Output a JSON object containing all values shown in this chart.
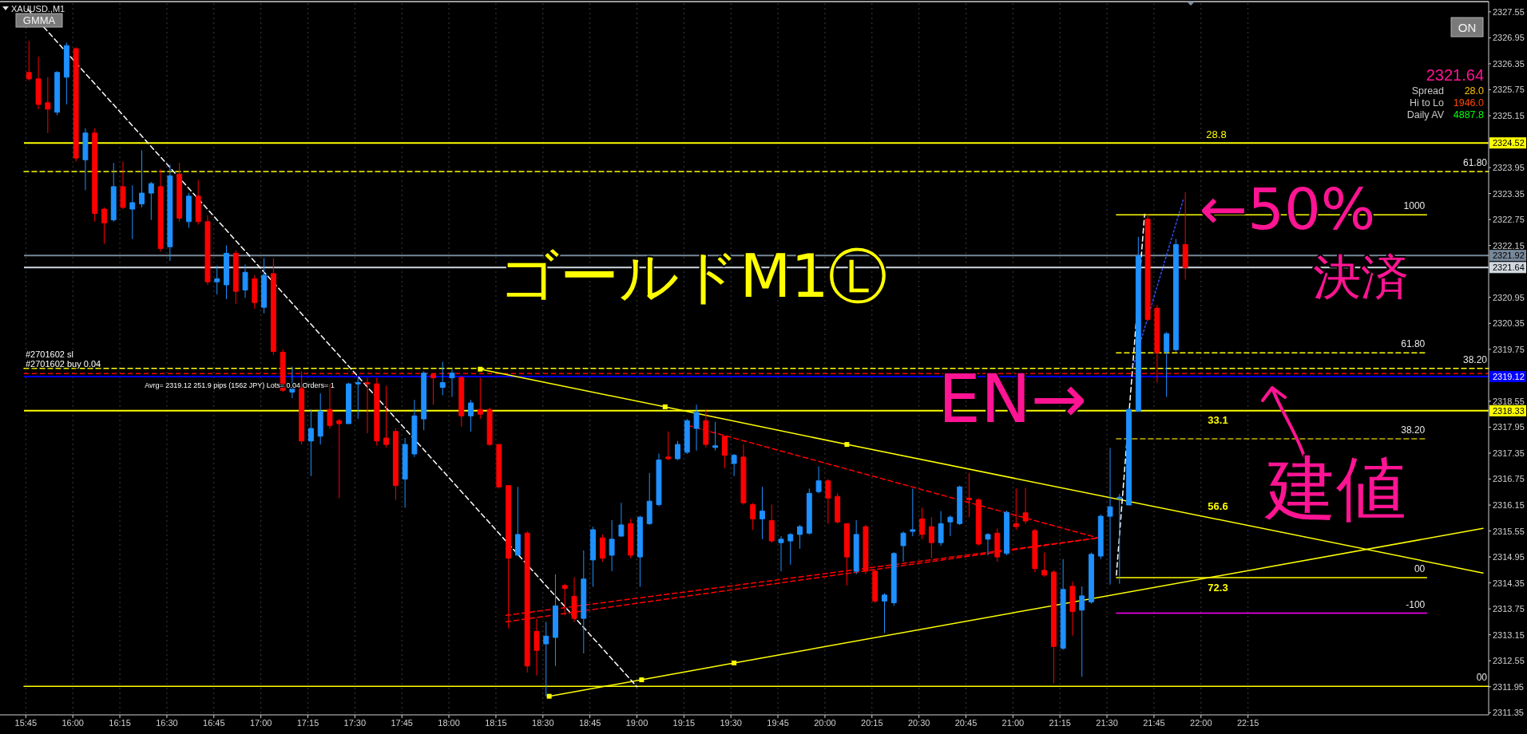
{
  "chart_data": {
    "type": "candlestick",
    "title": "XAUUSD.,M1",
    "x": [
      15.7667,
      15.8167,
      15.8667,
      15.9167,
      15.9667,
      16.0167,
      16.0667,
      16.1167,
      16.1667,
      16.2167,
      16.2667,
      16.3167,
      16.3667,
      16.4167,
      16.4667,
      16.5167,
      16.5667,
      16.6167,
      16.6667,
      16.7167,
      16.7667,
      16.8167,
      16.8667,
      16.9167,
      16.9667,
      17.0167,
      17.0667,
      17.1167,
      17.1667,
      17.2167,
      17.2667,
      17.3167,
      17.3667,
      17.4167,
      17.4667,
      17.5167,
      17.5667,
      17.6167,
      17.6667,
      17.7167,
      17.7667,
      17.8167,
      17.8667,
      17.9167,
      17.9667,
      18.0167,
      18.0667,
      18.1167,
      18.1667,
      18.2167,
      18.2667,
      18.3167,
      18.3667,
      18.4167,
      18.4667,
      18.5167,
      18.5667,
      18.6167,
      18.6667,
      18.7167,
      18.7667,
      18.8167,
      18.8667,
      18.9167,
      18.9667,
      19.0167,
      19.0667,
      19.1167,
      19.1667,
      19.2167,
      19.2667,
      19.3167,
      19.3667,
      19.4167,
      19.4667,
      19.5167,
      19.5667,
      19.6167,
      19.6667,
      19.7167,
      19.7667,
      19.8167,
      19.8667,
      19.9167,
      19.9667,
      20.0167,
      20.0667,
      20.1167,
      20.1667,
      20.2167,
      20.2667,
      20.3167,
      20.3667,
      20.4167,
      20.4667,
      20.5167,
      20.5667,
      20.6167,
      20.6667,
      20.7167,
      20.7667,
      20.8167,
      20.8667,
      20.9167,
      20.9667,
      21.0167,
      21.0667,
      21.1167,
      21.1667,
      21.2167,
      21.2667,
      21.3167,
      21.3667,
      21.4167,
      21.4667,
      21.5167,
      21.5667,
      21.6167,
      21.6667,
      21.7167,
      21.7667,
      21.8167,
      21.8667,
      21.9167
    ],
    "ohlc": [
      [
        2326.15,
        2326.88,
        2325.96,
        2326.0
      ],
      [
        2326.0,
        2326.51,
        2325.3,
        2325.41
      ],
      [
        2325.45,
        2326.04,
        2324.75,
        2325.3
      ],
      [
        2325.23,
        2326.18,
        2325.16,
        2326.15
      ],
      [
        2326.04,
        2326.84,
        2325.41,
        2326.77
      ],
      [
        2326.7,
        2326.73,
        2324.09,
        2324.17
      ],
      [
        2324.13,
        2324.86,
        2323.43,
        2324.75
      ],
      [
        2324.75,
        2324.86,
        2322.7,
        2322.89
      ],
      [
        2322.99,
        2323.03,
        2322.19,
        2322.67
      ],
      [
        2322.74,
        2324.06,
        2322.7,
        2323.51
      ],
      [
        2323.51,
        2324.09,
        2322.99,
        2323.03
      ],
      [
        2322.99,
        2323.54,
        2322.3,
        2323.14
      ],
      [
        2323.11,
        2324.35,
        2323.03,
        2323.36
      ],
      [
        2323.36,
        2323.62,
        2322.74,
        2323.58
      ],
      [
        2323.51,
        2323.91,
        2322.01,
        2322.08
      ],
      [
        2322.12,
        2324.02,
        2321.79,
        2323.76
      ],
      [
        2323.8,
        2324.06,
        2322.7,
        2322.78
      ],
      [
        2322.7,
        2323.36,
        2322.56,
        2323.29
      ],
      [
        2323.29,
        2323.66,
        2322.63,
        2322.7
      ],
      [
        2322.7,
        2322.85,
        2321.24,
        2321.31
      ],
      [
        2321.31,
        2321.68,
        2321.02,
        2321.38
      ],
      [
        2321.24,
        2322.15,
        2320.91,
        2321.97
      ],
      [
        2321.97,
        2322.04,
        2320.8,
        2321.09
      ],
      [
        2321.12,
        2321.71,
        2320.94,
        2321.53
      ],
      [
        2321.38,
        2321.46,
        2320.69,
        2320.83
      ],
      [
        2320.72,
        2321.86,
        2320.58,
        2321.46
      ],
      [
        2321.5,
        2321.86,
        2319.62,
        2319.7
      ],
      [
        2319.68,
        2319.75,
        2318.76,
        2318.8
      ],
      [
        2318.76,
        2319.35,
        2318.62,
        2318.84
      ],
      [
        2318.9,
        2319.24,
        2317.55,
        2317.63
      ],
      [
        2317.63,
        2318.36,
        2316.82,
        2317.92
      ],
      [
        2317.74,
        2318.73,
        2317.55,
        2318.32
      ],
      [
        2318.36,
        2318.95,
        2317.92,
        2317.99
      ],
      [
        2318.1,
        2318.14,
        2316.31,
        2318.03
      ],
      [
        2318.03,
        2318.98,
        2318.03,
        2318.95
      ],
      [
        2318.95,
        2319.09,
        2318.14,
        2318.98
      ],
      [
        2318.98,
        2319.09,
        2317.81,
        2318.95
      ],
      [
        2318.95,
        2319.09,
        2317.52,
        2317.63
      ],
      [
        2317.7,
        2318.91,
        2317.48,
        2317.55
      ],
      [
        2317.85,
        2317.92,
        2316.27,
        2316.6
      ],
      [
        2316.75,
        2317.7,
        2316.09,
        2317.55
      ],
      [
        2317.33,
        2318.58,
        2317.26,
        2318.21
      ],
      [
        2318.14,
        2319.24,
        2317.88,
        2319.2
      ],
      [
        2319.17,
        2319.2,
        2318.47,
        2319.09
      ],
      [
        2318.87,
        2319.46,
        2318.69,
        2318.98
      ],
      [
        2319.09,
        2319.28,
        2318.65,
        2319.2
      ],
      [
        2319.1,
        2319.12,
        2317.96,
        2318.21
      ],
      [
        2318.21,
        2318.58,
        2317.85,
        2318.51
      ],
      [
        2318.36,
        2319.09,
        2318.14,
        2318.25
      ],
      [
        2318.36,
        2318.4,
        2317.52,
        2317.55
      ],
      [
        2317.55,
        2317.55,
        2316.53,
        2316.57
      ],
      [
        2316.6,
        2316.6,
        2313.3,
        2314.92
      ],
      [
        2314.99,
        2316.57,
        2314.99,
        2315.47
      ],
      [
        2315.5,
        2315.54,
        2312.28,
        2312.43
      ],
      [
        2313.23,
        2313.52,
        2312.21,
        2312.79
      ],
      [
        2312.94,
        2313.45,
        2311.73,
        2313.12
      ],
      [
        2313.09,
        2314.55,
        2312.43,
        2313.82
      ],
      [
        2314.29,
        2314.33,
        2313.6,
        2314.22
      ],
      [
        2314.04,
        2314.48,
        2313.45,
        2313.53
      ],
      [
        2313.53,
        2315.1,
        2312.72,
        2314.44
      ],
      [
        2314.88,
        2315.65,
        2314.26,
        2315.58
      ],
      [
        2315.39,
        2315.47,
        2314.84,
        2314.92
      ],
      [
        2314.99,
        2315.8,
        2314.62,
        2315.36
      ],
      [
        2315.43,
        2316.2,
        2315.43,
        2315.69
      ],
      [
        2315.72,
        2315.83,
        2314.92,
        2314.99
      ],
      [
        2314.95,
        2315.9,
        2314.26,
        2315.87
      ],
      [
        2315.72,
        2316.89,
        2315.69,
        2316.24
      ],
      [
        2316.16,
        2317.34,
        2316.12,
        2317.19
      ],
      [
        2317.26,
        2317.85,
        2317.19,
        2317.22
      ],
      [
        2317.22,
        2317.63,
        2317.19,
        2317.55
      ],
      [
        2317.37,
        2318.14,
        2317.33,
        2318.1
      ],
      [
        2317.92,
        2318.47,
        2317.41,
        2318.29
      ],
      [
        2318.1,
        2318.36,
        2317.48,
        2317.55
      ],
      [
        2317.48,
        2318.07,
        2317.41,
        2317.52
      ],
      [
        2317.74,
        2317.74,
        2317.0,
        2317.3
      ],
      [
        2317.11,
        2317.33,
        2316.82,
        2317.3
      ],
      [
        2317.26,
        2317.55,
        2316.16,
        2316.2
      ],
      [
        2316.16,
        2316.2,
        2315.58,
        2315.83
      ],
      [
        2315.83,
        2316.57,
        2315.36,
        2316.01
      ],
      [
        2315.79,
        2316.16,
        2315.28,
        2315.32
      ],
      [
        2315.28,
        2315.43,
        2314.62,
        2315.36
      ],
      [
        2315.32,
        2315.5,
        2314.77,
        2315.47
      ],
      [
        2315.47,
        2315.69,
        2315.14,
        2315.65
      ],
      [
        2315.5,
        2316.53,
        2315.47,
        2316.42
      ],
      [
        2316.46,
        2317.04,
        2316.42,
        2316.71
      ],
      [
        2316.71,
        2316.75,
        2315.72,
        2316.31
      ],
      [
        2316.35,
        2316.42,
        2315.72,
        2315.76
      ],
      [
        2315.72,
        2315.72,
        2314.29,
        2314.95
      ],
      [
        2314.62,
        2315.8,
        2314.55,
        2315.47
      ],
      [
        2315.65,
        2315.69,
        2314.55,
        2314.62
      ],
      [
        2314.62,
        2314.66,
        2313.89,
        2313.93
      ],
      [
        2313.93,
        2314.11,
        2313.19,
        2314.07
      ],
      [
        2313.89,
        2315.06,
        2313.82,
        2315.03
      ],
      [
        2315.21,
        2315.54,
        2314.84,
        2315.5
      ],
      [
        2315.54,
        2316.53,
        2315.43,
        2315.58
      ],
      [
        2315.83,
        2316.09,
        2315.36,
        2315.47
      ],
      [
        2315.65,
        2315.87,
        2314.92,
        2315.28
      ],
      [
        2315.28,
        2316.01,
        2315.21,
        2315.72
      ],
      [
        2315.76,
        2315.91,
        2315.43,
        2315.87
      ],
      [
        2315.72,
        2316.6,
        2315.69,
        2316.57
      ],
      [
        2316.31,
        2316.89,
        2315.87,
        2316.27
      ],
      [
        2316.27,
        2316.31,
        2315.21,
        2315.25
      ],
      [
        2315.36,
        2315.5,
        2314.99,
        2315.47
      ],
      [
        2315.5,
        2315.61,
        2314.84,
        2314.95
      ],
      [
        2315.03,
        2316.02,
        2314.99,
        2315.98
      ],
      [
        2315.72,
        2316.53,
        2315.58,
        2315.65
      ],
      [
        2315.97,
        2316.55,
        2315.71,
        2315.78
      ],
      [
        2315.56,
        2315.6,
        2314.6,
        2314.68
      ],
      [
        2314.64,
        2315.05,
        2314.49,
        2314.53
      ],
      [
        2314.6,
        2314.64,
        2312.03,
        2312.88
      ],
      [
        2312.84,
        2314.9,
        2312.8,
        2314.2
      ],
      [
        2314.27,
        2314.38,
        2313.13,
        2313.69
      ],
      [
        2313.72,
        2314.27,
        2312.18,
        2314.05
      ],
      [
        2313.91,
        2315.05,
        2313.87,
        2315.01
      ],
      [
        2314.97,
        2315.93,
        2314.9,
        2315.89
      ],
      [
        2315.89,
        2317.47,
        2314.31,
        2316.11
      ],
      [
        2316.3,
        2316.41,
        2314.33,
        2316.33
      ],
      [
        2316.15,
        2318.4,
        2316.15,
        2318.36
      ],
      [
        2318.32,
        2322.35,
        2318.32,
        2321.91
      ],
      [
        2322.76,
        2322.87,
        2320.4,
        2320.44
      ],
      [
        2320.7,
        2320.77,
        2318.98,
        2319.67
      ],
      [
        2319.7,
        2320.15,
        2318.65,
        2320.11
      ],
      [
        2319.74,
        2322.3,
        2319.7,
        2322.17
      ],
      [
        2322.17,
        2323.38,
        2321.36,
        2321.64
      ]
    ],
    "colors": [
      "#ff0000",
      "#ff0000",
      "#ff0000",
      "#1e90ff",
      "#1e90ff",
      "#ff0000",
      "#1e90ff",
      "#ff0000",
      "#ff0000",
      "#1e90ff",
      "#ff0000",
      "#1e90ff",
      "#1e90ff",
      "#1e90ff",
      "#ff0000",
      "#1e90ff",
      "#ff0000",
      "#1e90ff",
      "#ff0000",
      "#ff0000",
      "#1e90ff",
      "#1e90ff",
      "#ff0000",
      "#1e90ff",
      "#ff0000",
      "#1e90ff",
      "#ff0000",
      "#ff0000",
      "#1e90ff",
      "#ff0000",
      "#1e90ff",
      "#1e90ff",
      "#ff0000",
      "#ff0000",
      "#1e90ff",
      "#1e90ff",
      "#ff0000",
      "#ff0000",
      "#ff0000",
      "#ff0000",
      "#1e90ff",
      "#1e90ff",
      "#1e90ff",
      "#ff0000",
      "#1e90ff",
      "#1e90ff",
      "#ff0000",
      "#1e90ff",
      "#ff0000",
      "#ff0000",
      "#ff0000",
      "#ff0000",
      "#1e90ff",
      "#ff0000",
      "#ff0000",
      "#1e90ff",
      "#1e90ff",
      "#ff0000",
      "#ff0000",
      "#1e90ff",
      "#1e90ff",
      "#ff0000",
      "#1e90ff",
      "#1e90ff",
      "#ff0000",
      "#1e90ff",
      "#1e90ff",
      "#1e90ff",
      "#ff0000",
      "#1e90ff",
      "#1e90ff",
      "#1e90ff",
      "#ff0000",
      "#1e90ff",
      "#ff0000",
      "#1e90ff",
      "#ff0000",
      "#ff0000",
      "#1e90ff",
      "#ff0000",
      "#1e90ff",
      "#1e90ff",
      "#1e90ff",
      "#1e90ff",
      "#1e90ff",
      "#ff0000",
      "#ff0000",
      "#ff0000",
      "#1e90ff",
      "#ff0000",
      "#ff0000",
      "#1e90ff",
      "#1e90ff",
      "#1e90ff",
      "#1e90ff",
      "#ff0000",
      "#ff0000",
      "#1e90ff",
      "#1e90ff",
      "#1e90ff",
      "#ff0000",
      "#ff0000",
      "#1e90ff",
      "#ff0000",
      "#1e90ff",
      "#ff0000",
      "#ff0000",
      "#ff0000",
      "#ff0000",
      "#ff0000",
      "#1e90ff",
      "#ff0000",
      "#1e90ff",
      "#1e90ff",
      "#1e90ff",
      "#1e90ff",
      "#1e90ff",
      "#1e90ff",
      "#1e90ff",
      "#ff0000",
      "#ff0000",
      "#1e90ff",
      "#1e90ff",
      "#ff0000"
    ],
    "xlim": [
      15.74,
      23.53
    ],
    "xticks": [
      {
        "value": 15.75,
        "label": "15:45"
      },
      {
        "value": 16,
        "label": "16:00"
      },
      {
        "value": 16.25,
        "label": "16:15"
      },
      {
        "value": 16.5,
        "label": "16:30"
      },
      {
        "value": 16.75,
        "label": "16:45"
      },
      {
        "value": 17,
        "label": "17:00"
      },
      {
        "value": 17.25,
        "label": "17:15"
      },
      {
        "value": 17.5,
        "label": "17:30"
      },
      {
        "value": 17.75,
        "label": "17:45"
      },
      {
        "value": 18,
        "label": "18:00"
      },
      {
        "value": 18.25,
        "label": "18:15"
      },
      {
        "value": 18.5,
        "label": "18:30"
      },
      {
        "value": 18.75,
        "label": "18:45"
      },
      {
        "value": 19,
        "label": "19:00"
      },
      {
        "value": 19.25,
        "label": "19:15"
      },
      {
        "value": 19.5,
        "label": "19:30"
      },
      {
        "value": 19.75,
        "label": "19:45"
      },
      {
        "value": 20,
        "label": "20:00"
      },
      {
        "value": 20.25,
        "label": "20:15"
      },
      {
        "value": 20.5,
        "label": "20:30"
      },
      {
        "value": 20.75,
        "label": "20:45"
      },
      {
        "value": 21,
        "label": "21:00"
      },
      {
        "value": 21.25,
        "label": "21:15"
      },
      {
        "value": 21.5,
        "label": "21:30"
      },
      {
        "value": 21.75,
        "label": "21:45"
      },
      {
        "value": 22,
        "label": "22:00"
      },
      {
        "value": 22.25,
        "label": "22:15"
      }
    ],
    "ylim": [
      2311.3,
      2327.75
    ],
    "yticks": [
      2311.35,
      2311.95,
      2312.55,
      2313.15,
      2313.75,
      2314.35,
      2314.95,
      2315.55,
      2316.15,
      2316.75,
      2317.35,
      2317.95,
      2318.55,
      2319.75,
      2320.35,
      2320.95,
      2322.15,
      2322.75,
      2323.35,
      2323.95,
      2325.15,
      2325.75,
      2326.35,
      2326.95,
      2327.55
    ],
    "grid": "x",
    "series": [
      {
        "type": "line",
        "name": "61.80",
        "x": [
          15.74,
          23.53
        ],
        "values": [
          2323.86,
          2323.86
        ],
        "color": "#ffff00",
        "line_style": "dashed"
      },
      {
        "type": "line",
        "name": "38.20",
        "x": [
          15.74,
          23.53
        ],
        "values": [
          2319.31,
          2319.31
        ],
        "color": "#ffff00",
        "line_style": "dashed"
      },
      {
        "type": "line",
        "name": "00",
        "x": [
          15.74,
          23.53
        ],
        "values": [
          2311.96,
          2311.96
        ],
        "color": "#ffff00",
        "line_style": "solid"
      },
      {
        "type": "line",
        "x": [
          18.1667,
          19.15,
          20.1167,
          23.5
        ],
        "values": [
          2319.29,
          2318.42,
          2317.55,
          2314.58
        ],
        "color": "#ffff00",
        "line_style": "solid"
      },
      {
        "type": "line",
        "x": [
          18.5333,
          19.025,
          19.5167,
          23.5
        ],
        "values": [
          2311.73,
          2312.11,
          2312.5,
          2315.61
        ],
        "color": "#ffff00",
        "line_style": "solid"
      },
      {
        "type": "scatter",
        "x": [
          18.1667,
          19.15,
          20.1167,
          18.5333,
          19.025,
          19.5167
        ],
        "values": [
          2319.29,
          2318.42,
          2317.55,
          2311.73,
          2312.11,
          2312.5
        ],
        "color": "#ffff00",
        "marker": "square"
      },
      {
        "type": "line",
        "x": [
          15.76,
          19.0
        ],
        "values": [
          2327.61,
          2311.95
        ],
        "color": "#ffffff",
        "line_style": "dashed"
      },
      {
        "type": "line",
        "x": [
          21.55,
          21.7
        ],
        "values": [
          2314.53,
          2322.87
        ],
        "color": "#ffffff",
        "line_style": "dashed"
      },
      {
        "type": "line",
        "x": [
          21.64,
          21.905
        ],
        "values": [
          2319.37,
          2323.2
        ],
        "color": "#3050ff",
        "line_style": "dotted"
      },
      {
        "type": "line",
        "x": [
          19.27,
          21.453
        ],
        "values": [
          2317.99,
          2315.39
        ],
        "color": "#ff0000",
        "line_style": "dashed"
      },
      {
        "type": "line",
        "x": [
          18.303,
          21.453
        ],
        "values": [
          2313.6,
          2315.39
        ],
        "color": "#ff0000",
        "line_style": "dashed"
      },
      {
        "type": "line",
        "x": [
          18.303,
          21.453
        ],
        "values": [
          2313.45,
          2315.39
        ],
        "color": "#ff0000",
        "line_style": "dashed"
      },
      {
        "type": "line",
        "name": "1000",
        "x": [
          21.55,
          23.2
        ],
        "values": [
          2322.86,
          2322.86
        ],
        "color": "#ffff00",
        "line_style": "solid"
      },
      {
        "type": "line",
        "name": "61.80",
        "x": [
          21.55,
          23.2
        ],
        "values": [
          2319.67,
          2319.67
        ],
        "color": "#ffff00",
        "line_style": "dashed"
      },
      {
        "type": "line",
        "name": "38.20",
        "x": [
          21.55,
          23.2
        ],
        "values": [
          2317.68,
          2317.68
        ],
        "color": "#c8b400",
        "line_style": "dashed"
      },
      {
        "type": "line",
        "name": "00",
        "x": [
          21.55,
          23.2
        ],
        "values": [
          2314.47,
          2314.47
        ],
        "color": "#ffff00",
        "line_style": "solid"
      },
      {
        "type": "line",
        "name": "-100",
        "x": [
          21.55,
          23.2
        ],
        "values": [
          2313.65,
          2313.65
        ],
        "color": "#ff00ff",
        "line_style": "solid"
      }
    ],
    "ref_lines": [
      {
        "axis": "y",
        "value": 2324.52,
        "label": "2324.52",
        "color": "#ffff00"
      },
      {
        "axis": "y",
        "value": 2321.92,
        "label": "2321.92",
        "color": "#778899"
      },
      {
        "axis": "y",
        "value": 2321.64,
        "label": "2321.64",
        "color": "#d0d8e0"
      },
      {
        "axis": "y",
        "value": 2319.19,
        "color": "#ff0000",
        "line_style": "dashed"
      },
      {
        "axis": "y",
        "value": 2319.12,
        "label": "2319.12",
        "color": "#0000ff"
      },
      {
        "axis": "y",
        "value": 2318.33,
        "label": "2318.33",
        "color": "#ffff00"
      }
    ],
    "annotations": [
      "GMMA",
      "ON",
      "2321.64",
      "Spread",
      "28.0",
      "Hi to Lo",
      "1946.0",
      "Daily AV",
      "4887.8",
      "#2701602 sl",
      "#2701602 buy 0.04",
      "Avrg= 2319.12 251.9 pips (1562 JPY) Lots= 0.04 Orders= 1",
      "28.8",
      "33.1",
      "56.6",
      "72.3",
      "ゴールドM1Ⓛ",
      "EN→",
      "←50%",
      "決済",
      "建値"
    ]
  }
}
